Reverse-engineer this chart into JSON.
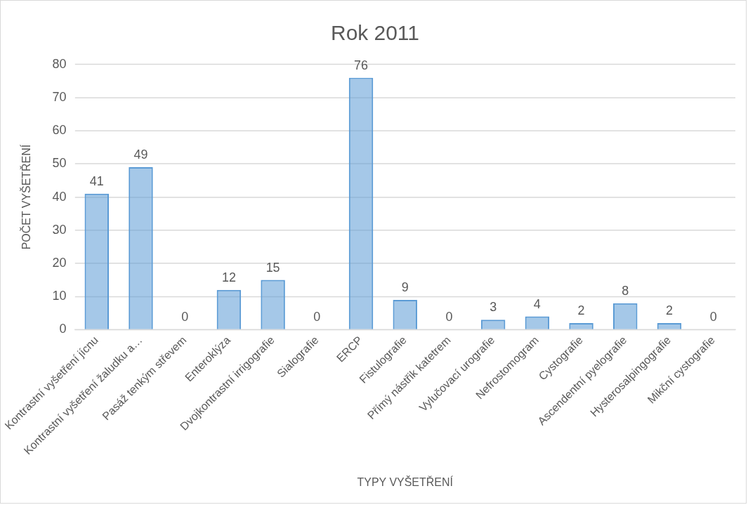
{
  "chart_data": {
    "type": "bar",
    "title": "Rok 2011",
    "xlabel": "TYPY VYŠETŘENÍ",
    "ylabel": "POČET VYŠETŘENÍ",
    "categories": [
      "Kontrastní vyšetření jícnu",
      "Kontrastní vyšetření žaludku a…",
      "Pasáž tenkým střevem",
      "Enteroklýza",
      "Dvojkontrastní irrigografie",
      "Sialografie",
      "ERCP",
      "Fistulografie",
      "Přímý nástřik katetrem",
      "Vylučovací urografie",
      "Nefrostomogram",
      "Cystografie",
      "Ascendentní pyelografie",
      "Hysterosalpingografie",
      "Mikční cystografie"
    ],
    "values": [
      41,
      49,
      0,
      12,
      15,
      0,
      76,
      9,
      0,
      3,
      4,
      2,
      8,
      2,
      0
    ],
    "color": "#5b9bd5",
    "ylim": [
      0,
      80
    ],
    "yticks": [
      0,
      10,
      20,
      30,
      40,
      50,
      60,
      70,
      80
    ],
    "grid": "y",
    "data_labels": true,
    "legend": false
  }
}
